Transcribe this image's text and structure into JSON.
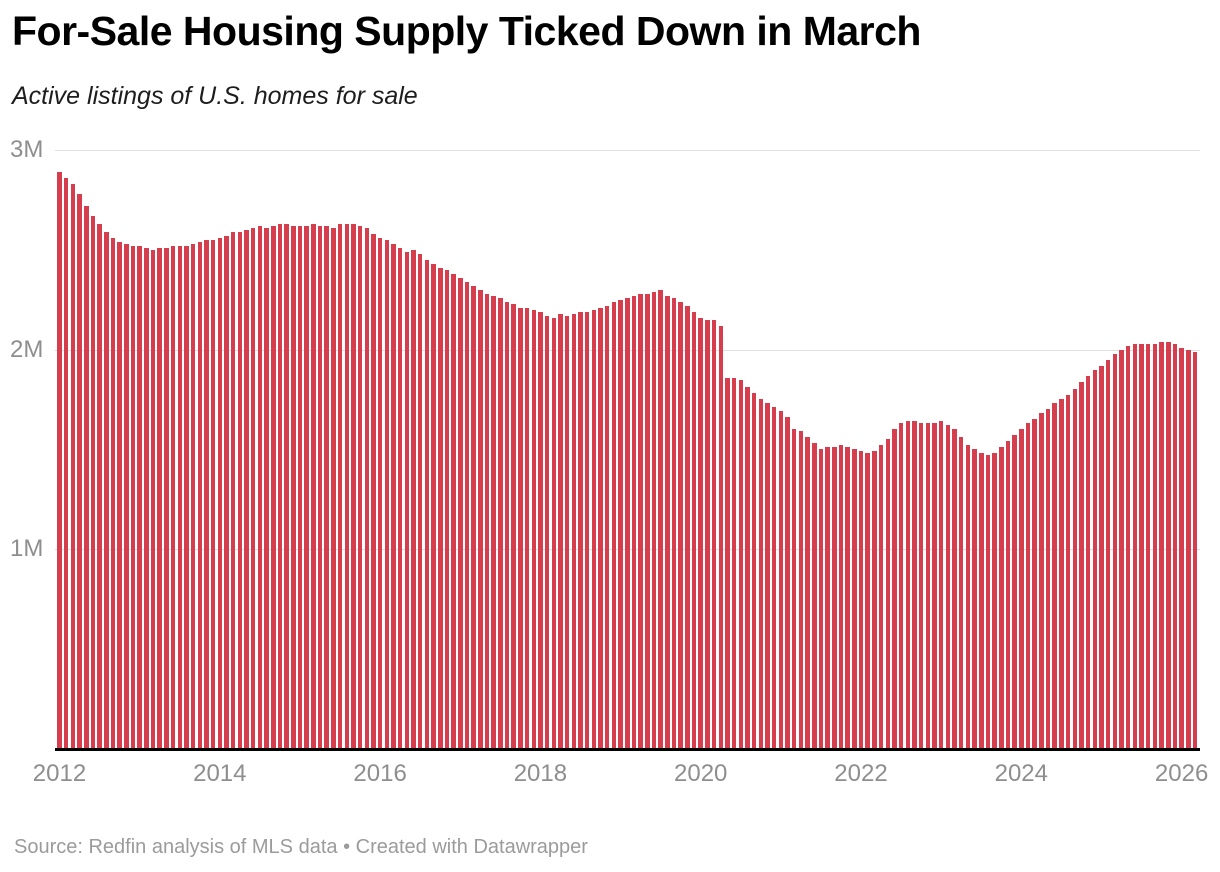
{
  "header": {
    "title": "For-Sale Housing Supply Ticked Down in March",
    "subtitle": "Active listings of U.S. homes for sale"
  },
  "footer": {
    "source_line": "Source: Redfin analysis of MLS data • Created with Datawrapper"
  },
  "colors": {
    "bar": "#d63d4d",
    "grid": "#e0e0e0",
    "axis": "#000000",
    "tick_text": "#8e8e8e"
  },
  "chart_data": {
    "type": "bar",
    "title": "For-Sale Housing Supply Ticked Down in March",
    "subtitle": "Active listings of U.S. homes for sale",
    "unit": "millions of active listings",
    "frequency": "monthly",
    "x_start": "2012-01",
    "x_end": "2026-03",
    "ylim": [
      0,
      3
    ],
    "grid": "horizontal",
    "legend": "none",
    "y_tick_values": [
      3,
      2,
      1
    ],
    "y_tick_labels": [
      "3M",
      "2M",
      "1M"
    ],
    "x_tick_years": [
      2012,
      2014,
      2016,
      2018,
      2020,
      2022,
      2024,
      2026
    ],
    "x_tick_labels": [
      "2012",
      "2014",
      "2016",
      "2018",
      "2020",
      "2022",
      "2024",
      "2026"
    ],
    "values": [
      2.89,
      2.86,
      2.83,
      2.78,
      2.72,
      2.67,
      2.63,
      2.59,
      2.56,
      2.54,
      2.53,
      2.52,
      2.52,
      2.51,
      2.5,
      2.51,
      2.51,
      2.52,
      2.52,
      2.52,
      2.53,
      2.54,
      2.55,
      2.55,
      2.56,
      2.57,
      2.59,
      2.59,
      2.6,
      2.61,
      2.62,
      2.61,
      2.62,
      2.63,
      2.63,
      2.62,
      2.62,
      2.62,
      2.63,
      2.62,
      2.62,
      2.61,
      2.63,
      2.63,
      2.63,
      2.62,
      2.61,
      2.58,
      2.56,
      2.55,
      2.53,
      2.51,
      2.49,
      2.5,
      2.48,
      2.45,
      2.43,
      2.41,
      2.4,
      2.38,
      2.36,
      2.34,
      2.32,
      2.3,
      2.28,
      2.27,
      2.26,
      2.24,
      2.23,
      2.21,
      2.21,
      2.2,
      2.19,
      2.17,
      2.16,
      2.18,
      2.17,
      2.18,
      2.19,
      2.19,
      2.2,
      2.21,
      2.22,
      2.24,
      2.25,
      2.26,
      2.27,
      2.28,
      2.28,
      2.29,
      2.3,
      2.27,
      2.26,
      2.24,
      2.22,
      2.19,
      2.16,
      2.15,
      2.15,
      2.12,
      1.86,
      1.86,
      1.85,
      1.81,
      1.78,
      1.75,
      1.73,
      1.71,
      1.69,
      1.66,
      1.6,
      1.59,
      1.56,
      1.53,
      1.5,
      1.51,
      1.51,
      1.52,
      1.51,
      1.5,
      1.49,
      1.48,
      1.49,
      1.52,
      1.55,
      1.6,
      1.63,
      1.64,
      1.64,
      1.63,
      1.63,
      1.63,
      1.64,
      1.62,
      1.6,
      1.56,
      1.52,
      1.5,
      1.48,
      1.47,
      1.48,
      1.51,
      1.54,
      1.57,
      1.6,
      1.63,
      1.65,
      1.68,
      1.7,
      1.73,
      1.75,
      1.77,
      1.8,
      1.84,
      1.87,
      1.9,
      1.92,
      1.95,
      1.98,
      2.0,
      2.02,
      2.03,
      2.03,
      2.03,
      2.03,
      2.04,
      2.04,
      2.03,
      2.01,
      2.0,
      1.99
    ]
  }
}
